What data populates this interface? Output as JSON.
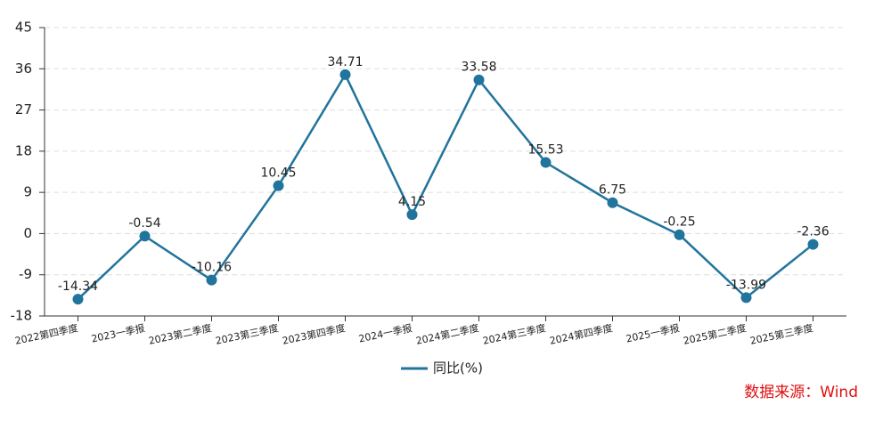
{
  "chart_data": {
    "type": "line",
    "categories": [
      "2022第四季度",
      "2023一季报",
      "2023第二季度",
      "2023第三季度",
      "2023第四季度",
      "2024一季报",
      "2024第二季度",
      "2024第三季度",
      "2024第四季度",
      "2025一季报",
      "2025第二季度",
      "2025第三季度"
    ],
    "series": [
      {
        "name": "同比(%)",
        "color": "#21749c",
        "values": [
          -14.34,
          -0.54,
          -10.16,
          10.45,
          34.71,
          4.15,
          33.58,
          15.53,
          6.75,
          -0.25,
          -13.99,
          -2.36
        ]
      }
    ],
    "ylim": [
      -18,
      45
    ],
    "yticks": [
      -18,
      -9,
      0,
      9,
      18,
      27,
      36,
      45
    ],
    "grid": true,
    "legend": "bottom",
    "source": "数据来源：Wind"
  }
}
